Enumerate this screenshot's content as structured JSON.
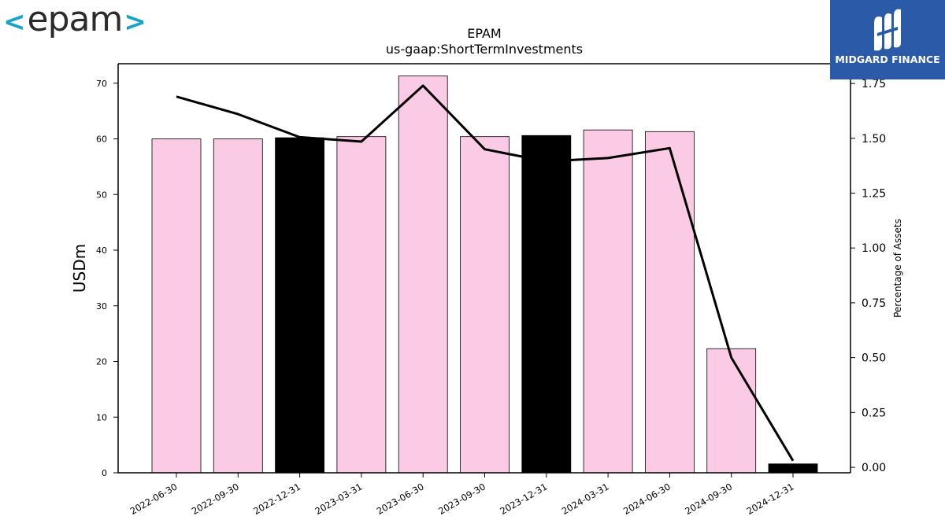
{
  "logos": {
    "left_text": "epam",
    "left_chevron_open": "<",
    "left_chevron_close": ">",
    "right_text": "MIDGARD FINANCE",
    "right_bg": "#2b5aa8"
  },
  "chart_data": {
    "type": "bar",
    "title": "EPAM",
    "subtitle": "us-gaap:ShortTermInvestments",
    "ylabel": "USDm",
    "ylabel_right": "Percentage of Assets",
    "categories": [
      "2022-06-30",
      "2022-09-30",
      "2022-12-31",
      "2023-03-31",
      "2023-06-30",
      "2023-09-30",
      "2023-12-31",
      "2024-03-31",
      "2024-06-30",
      "2024-09-30",
      "2024-12-31"
    ],
    "series": [
      {
        "values": [
          60.0,
          60.0,
          60.2,
          60.4,
          71.3,
          60.4,
          60.6,
          61.6,
          61.3,
          22.3,
          1.6
        ],
        "colors": [
          "#fbcae5",
          "#fbcae5",
          "#000000",
          "#fbcae5",
          "#fbcae5",
          "#fbcae5",
          "#000000",
          "#fbcae5",
          "#fbcae5",
          "#fbcae5",
          "#000000"
        ]
      },
      {
        "type": "line",
        "axis": "right",
        "color": "#000000",
        "values": [
          1.69,
          1.61,
          1.505,
          1.485,
          1.74,
          1.45,
          1.395,
          1.41,
          1.455,
          0.5,
          0.03
        ]
      }
    ],
    "ylim": [
      0,
      73.5
    ],
    "ylim_right": [
      -0.025,
      1.84
    ],
    "yticks": [
      0,
      10,
      20,
      30,
      40,
      50,
      60,
      70
    ],
    "yticks_right": [
      "0.00",
      "0.25",
      "0.50",
      "0.75",
      "1.00",
      "1.25",
      "1.50",
      "1.75"
    ],
    "grid": false
  }
}
